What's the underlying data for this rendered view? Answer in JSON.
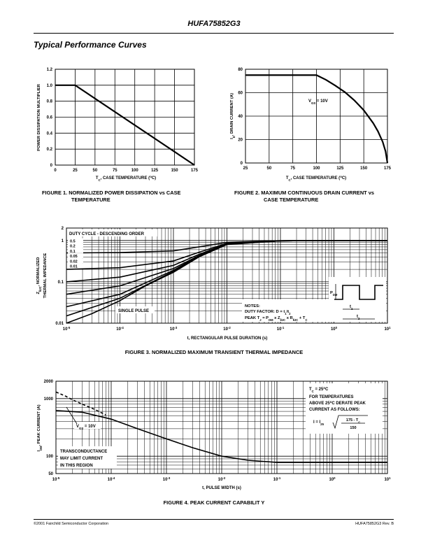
{
  "header": {
    "part_number": "HUFA75852G3"
  },
  "section_title": "Typical Performance Curves",
  "footer": {
    "left": "©2001 Fairchild Semiconductor Corporation",
    "right": "HUFA75852G3 Rev. B"
  },
  "figures": {
    "fig1": {
      "caption_line1": "FIGURE 1.   NORMALIZED POWER DISSIPATION vs CASE",
      "caption_line2": "TEMPERATURE"
    },
    "fig2": {
      "caption_line1": "FIGURE 2.  MAXIMUM CONTINUOUS DRAIN CURRENT vs",
      "caption_line2": "CASE TEMPERATURE",
      "annotation": "V_GS = 10V"
    },
    "fig3": {
      "caption": "FIGURE 3.  NORMALIZED MAXIMUM TRANSIENT THERMAL IMPEDANCE",
      "legend_title": "DUTY CYCLE - DESCENDING ORDER",
      "legend_items": [
        "0.5",
        "0.2",
        "0.1",
        "0.05",
        "0.02",
        "0.01"
      ],
      "single_pulse_label": "SINGLE PULSE",
      "notes_title": "NOTES:",
      "notes_line1": "DUTY FACTOR: D = t1/t2",
      "notes_line2": "PEAK TJ = PDM x ZθJC x RθJC + TC",
      "pdm_label": "PDM",
      "t1_label": "t1",
      "t2_label": "t2"
    },
    "fig4": {
      "caption": "FIGURE 4.  PEAK CURRENT CAPABILIT  Y",
      "box_line1": "TC = 25°C",
      "box_line2": "FOR TEMPERATURES",
      "box_line3": "ABOVE 25°C DERATE PEAK",
      "box_line4": "CURRENT AS FOLLOWS:",
      "formula_lhs": "I = I25",
      "formula_num": "175 - TC",
      "formula_den": "150",
      "vgs_label": "VGS = 10V",
      "note_line1": "TRANSCONDUCTANCE",
      "note_line2": "MAY LIMIT CURRENT",
      "note_line3": "IN THIS REGION"
    }
  },
  "chart_data": [
    {
      "id": "fig1",
      "type": "line",
      "xlabel": "TC, CASE TEMPERATURE (°C)",
      "ylabel": "POWER DISSIPATION MULTIPLIER",
      "xlim": [
        0,
        175
      ],
      "ylim": [
        0,
        1.2
      ],
      "xticks": [
        0,
        25,
        50,
        75,
        100,
        125,
        150,
        175
      ],
      "yticks": [
        0,
        0.2,
        0.4,
        0.6,
        0.8,
        1.0,
        1.2
      ],
      "ytick_labels": [
        "0",
        "0.2",
        "0.4",
        "0.6",
        "0.8",
        "1.0",
        "1.2"
      ],
      "grid": true,
      "series": [
        {
          "x": [
            0,
            25,
            175
          ],
          "y": [
            1.0,
            1.0,
            0
          ]
        }
      ]
    },
    {
      "id": "fig2",
      "type": "line",
      "xlabel": "TC, CASE TEMPERATURE (°C)",
      "ylabel": "ID, DRAIN CURRENT (A)",
      "xlim": [
        25,
        175
      ],
      "ylim": [
        0,
        80
      ],
      "xticks": [
        25,
        50,
        75,
        100,
        125,
        150,
        175
      ],
      "yticks": [
        0,
        20,
        40,
        60,
        80
      ],
      "grid": true,
      "series": [
        {
          "x": [
            25,
            100,
            110,
            120,
            130,
            140,
            150,
            160,
            165,
            170,
            173,
            175
          ],
          "y": [
            75,
            75,
            71,
            66,
            60.5,
            53.5,
            45,
            34,
            27,
            18,
            10,
            0
          ]
        }
      ]
    },
    {
      "id": "fig3",
      "type": "line",
      "xscale": "log",
      "yscale": "log",
      "xlabel": "t, RECTANGULAR PULSE DURATION (s)",
      "ylabel": "ZθJC, NORMALIZED THERMAL IMPEDANCE",
      "xlim": [
        1e-05,
        10
      ],
      "ylim": [
        0.01,
        2
      ],
      "xtick_labels": [
        "10-5",
        "10-4",
        "10-3",
        "10-2",
        "10-1",
        "100",
        "101"
      ],
      "ytick_labels": [
        "0.01",
        "0.1",
        "1",
        "2"
      ],
      "grid": true,
      "series": [
        {
          "name": "0.5",
          "x": [
            1e-05,
            0.0001,
            0.001,
            0.003,
            0.01,
            0.1,
            1,
            10
          ],
          "y": [
            0.5,
            0.51,
            0.56,
            0.7,
            0.9,
            0.99,
            1.0,
            1.0
          ]
        },
        {
          "name": "0.2",
          "x": [
            1e-05,
            0.0001,
            0.001,
            0.003,
            0.01,
            0.1,
            1,
            10
          ],
          "y": [
            0.2,
            0.22,
            0.32,
            0.52,
            0.85,
            0.98,
            1.0,
            1.0
          ]
        },
        {
          "name": "0.1",
          "x": [
            1e-05,
            0.0001,
            0.001,
            0.003,
            0.01,
            0.1,
            1,
            10
          ],
          "y": [
            0.1,
            0.13,
            0.25,
            0.46,
            0.83,
            0.98,
            1.0,
            1.0
          ]
        },
        {
          "name": "0.05",
          "x": [
            1e-05,
            0.0001,
            0.001,
            0.003,
            0.01,
            0.1,
            1,
            10
          ],
          "y": [
            0.05,
            0.08,
            0.21,
            0.43,
            0.82,
            0.98,
            1.0,
            1.0
          ]
        },
        {
          "name": "0.02",
          "x": [
            1e-05,
            0.0001,
            0.001,
            0.003,
            0.01,
            0.1,
            1,
            10
          ],
          "y": [
            0.025,
            0.05,
            0.19,
            0.42,
            0.82,
            0.98,
            1.0,
            1.0
          ]
        },
        {
          "name": "0.01",
          "x": [
            1e-05,
            0.0001,
            0.001,
            0.003,
            0.01,
            0.1,
            1,
            10
          ],
          "y": [
            0.015,
            0.04,
            0.18,
            0.41,
            0.81,
            0.98,
            1.0,
            1.0
          ]
        },
        {
          "name": "SINGLE PULSE",
          "x": [
            1e-05,
            3e-05,
            0.0001,
            0.0003,
            0.001,
            0.003,
            0.01,
            0.1,
            1,
            10
          ],
          "y": [
            0.01,
            0.017,
            0.035,
            0.08,
            0.17,
            0.4,
            0.8,
            0.98,
            1.0,
            1.0
          ]
        }
      ]
    },
    {
      "id": "fig4",
      "type": "line",
      "xscale": "log",
      "yscale": "log",
      "xlabel": "t, PULSE WIDTH (s)",
      "ylabel": "IDM, PEAK CURRENT (A)",
      "xlim": [
        1e-05,
        10
      ],
      "ylim": [
        50,
        2000
      ],
      "xtick_labels": [
        "10-5",
        "10-4",
        "10-3",
        "10-2",
        "10-1",
        "100",
        "101"
      ],
      "ytick_labels": [
        "50",
        "100",
        "1000",
        "2000"
      ],
      "grid": true,
      "series": [
        {
          "x": [
            1e-05,
            3e-05,
            0.0001,
            0.0003,
            0.001,
            0.003,
            0.01,
            0.03,
            0.1,
            1,
            10
          ],
          "y": [
            620,
            580,
            440,
            300,
            200,
            140,
            100,
            85,
            78,
            78,
            78
          ]
        },
        {
          "x": [
            1e-05,
            1.5e-05,
            2e-05,
            3e-05,
            5e-05,
            8e-05
          ],
          "y": [
            1300,
            1100,
            950,
            800,
            650,
            520
          ],
          "dash": true
        }
      ]
    }
  ]
}
